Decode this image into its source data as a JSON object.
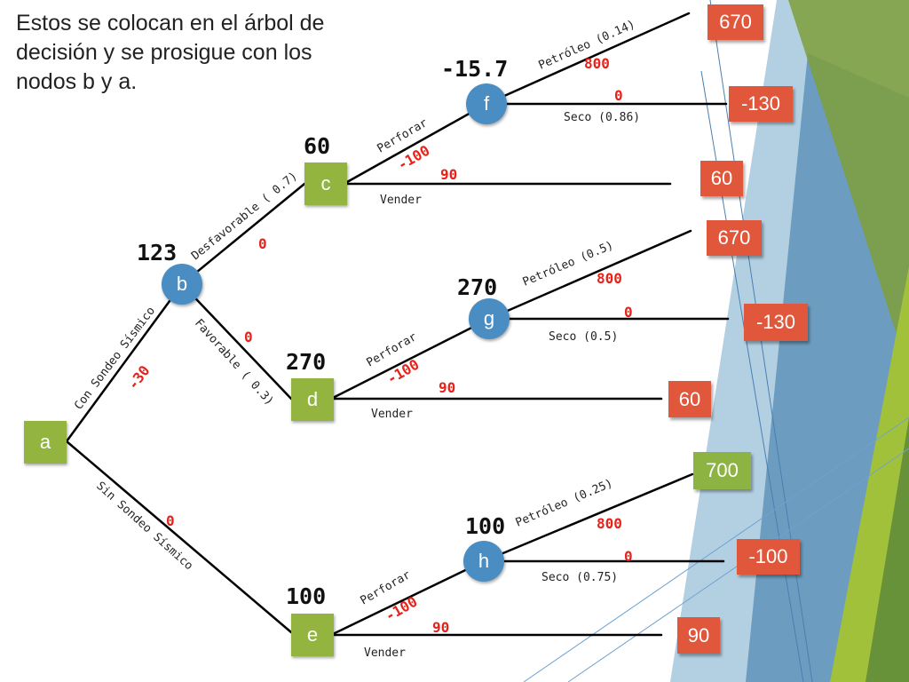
{
  "slide": {
    "text": "Estos se colocan en el árbol de decisión y se prosigue con los nodos b y a."
  },
  "colors": {
    "decision_node": "#93b53f",
    "chance_node": "#4a8dc3",
    "branch_value": "#e5231b",
    "branch_line": "#000000"
  },
  "nodes": {
    "a": {
      "label": "a"
    },
    "b": {
      "label": "b",
      "value": "123"
    },
    "c": {
      "label": "c",
      "value": "60"
    },
    "d": {
      "label": "d",
      "value": "270"
    },
    "e": {
      "label": "e",
      "value": "100"
    },
    "f": {
      "label": "f",
      "value": "-15.7"
    },
    "g": {
      "label": "g",
      "value": "270"
    },
    "h": {
      "label": "h",
      "value": "100"
    }
  },
  "branches": {
    "a_b": {
      "label": "Con Sondeo Sísmico",
      "value": "-30"
    },
    "a_e": {
      "label": "Sin Sondeo Sísmico",
      "value": "0"
    },
    "b_c": {
      "label": "Desfavorable ( 0.7)",
      "value": "0"
    },
    "b_d": {
      "label": "Favorable ( 0.3)",
      "value": "0"
    },
    "c_f": {
      "label": "Perforar",
      "value": "-100"
    },
    "c_sell": {
      "label": "Vender",
      "value": "90"
    },
    "f_oil": {
      "label": "Petróleo (0.14)",
      "value": "800"
    },
    "f_dry": {
      "label": "Seco (0.86)",
      "value": "0"
    },
    "d_g": {
      "label": "Perforar",
      "value": "-100"
    },
    "d_sell": {
      "label": "Vender",
      "value": "90"
    },
    "g_oil": {
      "label": "Petróleo (0.5)",
      "value": "800"
    },
    "g_dry": {
      "label": "Seco (0.5)",
      "value": "0"
    },
    "e_h": {
      "label": "Perforar",
      "value": "-100"
    },
    "e_sell": {
      "label": "Vender",
      "value": "90"
    },
    "h_oil": {
      "label": "Petróleo (0.25)",
      "value": "800"
    },
    "h_dry": {
      "label": "Seco (0.75)",
      "value": "0"
    }
  },
  "payoffs": {
    "f_oil": {
      "value": "670",
      "color": "#e1573b"
    },
    "f_dry": {
      "value": "-130",
      "color": "#e1573b"
    },
    "c_sell": {
      "value": "60",
      "color": "#e1573b"
    },
    "g_oil": {
      "value": "670",
      "color": "#e1573b"
    },
    "g_dry": {
      "value": "-130",
      "color": "#e1573b"
    },
    "d_sell": {
      "value": "60",
      "color": "#e1573b"
    },
    "h_oil": {
      "value": "700",
      "color": "#8db443"
    },
    "h_dry": {
      "value": "-100",
      "color": "#e1573b"
    },
    "e_sell": {
      "value": "90",
      "color": "#e1573b"
    }
  }
}
